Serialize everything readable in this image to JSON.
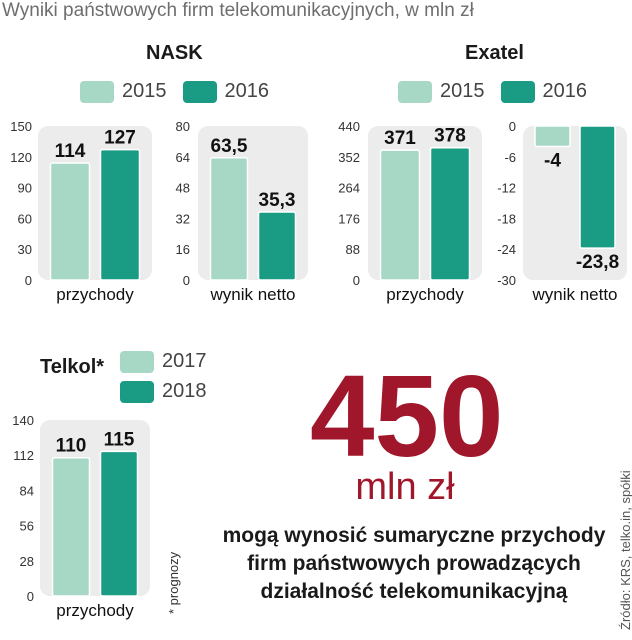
{
  "headline": "Wyniki państwowych firm telekomunikacyjnych, w mln zł",
  "colors": {
    "light": "#a7d8c6",
    "dark": "#1a9c84",
    "panel": "#ececec",
    "accent": "#a0162a"
  },
  "companies": [
    {
      "name": "NASK",
      "legend": [
        "2015",
        "2016"
      ]
    },
    {
      "name": "Exatel",
      "legend": [
        "2015",
        "2016"
      ]
    },
    {
      "name": "Telkol*",
      "legend": [
        "2017",
        "2018"
      ]
    }
  ],
  "chart_data": [
    {
      "type": "bar",
      "company": "NASK",
      "xlabel": "przychody",
      "series": [
        {
          "name": "2015",
          "values": [
            114
          ],
          "label": "114"
        },
        {
          "name": "2016",
          "values": [
            127
          ],
          "label": "127"
        }
      ],
      "ylim": [
        0,
        150
      ],
      "yticks": [
        "0",
        "30",
        "60",
        "90",
        "120",
        "150"
      ]
    },
    {
      "type": "bar",
      "company": "NASK",
      "xlabel": "wynik netto",
      "series": [
        {
          "name": "2015",
          "values": [
            63.5
          ],
          "label": "63,5"
        },
        {
          "name": "2016",
          "values": [
            35.3
          ],
          "label": "35,3"
        }
      ],
      "ylim": [
        0,
        80
      ],
      "yticks": [
        "0",
        "16",
        "32",
        "48",
        "64",
        "80"
      ]
    },
    {
      "type": "bar",
      "company": "Exatel",
      "xlabel": "przychody",
      "series": [
        {
          "name": "2015",
          "values": [
            371
          ],
          "label": "371"
        },
        {
          "name": "2016",
          "values": [
            378
          ],
          "label": "378"
        }
      ],
      "ylim": [
        0,
        440
      ],
      "yticks": [
        "0",
        "88",
        "176",
        "264",
        "352",
        "440"
      ]
    },
    {
      "type": "bar",
      "company": "Exatel",
      "xlabel": "wynik netto",
      "series": [
        {
          "name": "2015",
          "values": [
            -4
          ],
          "label": "-4"
        },
        {
          "name": "2016",
          "values": [
            -23.8
          ],
          "label": "-23,8"
        }
      ],
      "ylim": [
        -30,
        0
      ],
      "yticks": [
        "-30",
        "-24",
        "-18",
        "-12",
        "-6",
        "0"
      ]
    },
    {
      "type": "bar",
      "company": "Telkol*",
      "xlabel": "przychody",
      "series": [
        {
          "name": "2017",
          "values": [
            110
          ],
          "label": "110"
        },
        {
          "name": "2018",
          "values": [
            115
          ],
          "label": "115"
        }
      ],
      "ylim": [
        0,
        140
      ],
      "yticks": [
        "0",
        "28",
        "56",
        "84",
        "112",
        "140"
      ]
    }
  ],
  "highlight": {
    "number": "450",
    "unit": "mln zł"
  },
  "callout": [
    "mogą wynosić sumaryczne przychody",
    "firm państwowych prowadzących",
    "działalność telekomunikacyjną"
  ],
  "footnote": "* prognozy",
  "source": "Źródło: KRS, telko.in, spółki"
}
